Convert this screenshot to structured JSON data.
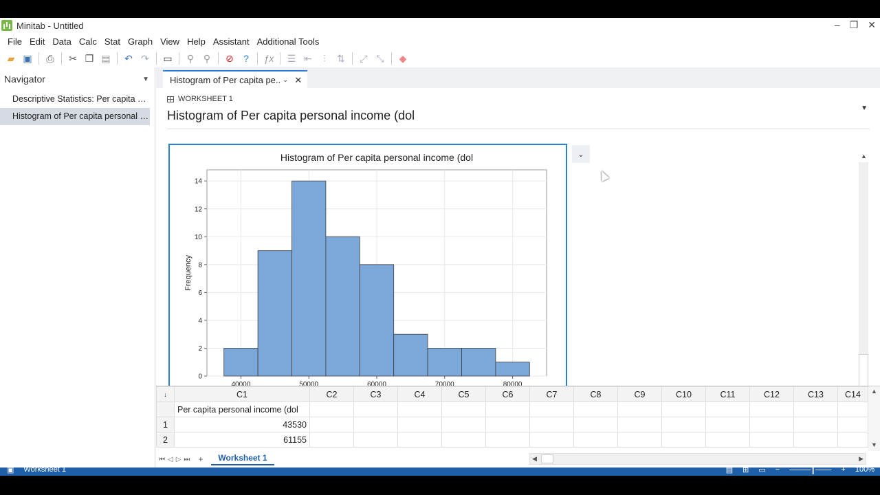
{
  "window": {
    "title": "Minitab - Untitled",
    "controls": [
      "–",
      "❐",
      "✕"
    ]
  },
  "menu": [
    "File",
    "Edit",
    "Data",
    "Calc",
    "Stat",
    "Graph",
    "View",
    "Help",
    "Assistant",
    "Additional Tools"
  ],
  "navigator": {
    "title": "Navigator",
    "items": [
      {
        "label": "Descriptive Statistics: Per capita per..."
      },
      {
        "label": "Histogram of Per capita personal in..."
      }
    ]
  },
  "tab": {
    "label": "Histogram of Per capita pe...",
    "dropdown": "⌄",
    "close": "✕"
  },
  "output": {
    "worksheet_label": "WORKSHEET 1",
    "title": "Histogram of Per capita personal income (dol",
    "menu_glyph": "▼",
    "graph_dropdown_glyph": "⌄"
  },
  "chart_data": {
    "type": "bar",
    "title": "Histogram of Per capita personal income (dol",
    "ylabel": "Frequency",
    "xlabel": "",
    "bin_edges": [
      37500,
      42500,
      47500,
      52500,
      57500,
      62500,
      67500,
      72500,
      77500,
      82500
    ],
    "values": [
      2,
      9,
      14,
      10,
      8,
      3,
      2,
      2,
      1
    ],
    "ylim": [
      0,
      14.8
    ],
    "yticks": [
      0,
      2,
      4,
      6,
      8,
      10,
      12,
      14
    ],
    "xticks": [
      "40000",
      "50000",
      "60000",
      "70000",
      "80000"
    ],
    "grid": true,
    "bar_color": "#7ba7d9"
  },
  "worksheet": {
    "columns": [
      "C1",
      "C2",
      "C3",
      "C4",
      "C5",
      "C6",
      "C7",
      "C8",
      "C9",
      "C10",
      "C11",
      "C12",
      "C13",
      "C14"
    ],
    "c1_name": "Per capita personal income (dol",
    "rows": [
      {
        "row": "1",
        "value": "43530"
      },
      {
        "row": "2",
        "value": "61155"
      }
    ],
    "sheet_tab": "Worksheet 1",
    "add_sheet": "+"
  },
  "statusbar": {
    "left": "Worksheet 1",
    "zoom": "100%"
  }
}
